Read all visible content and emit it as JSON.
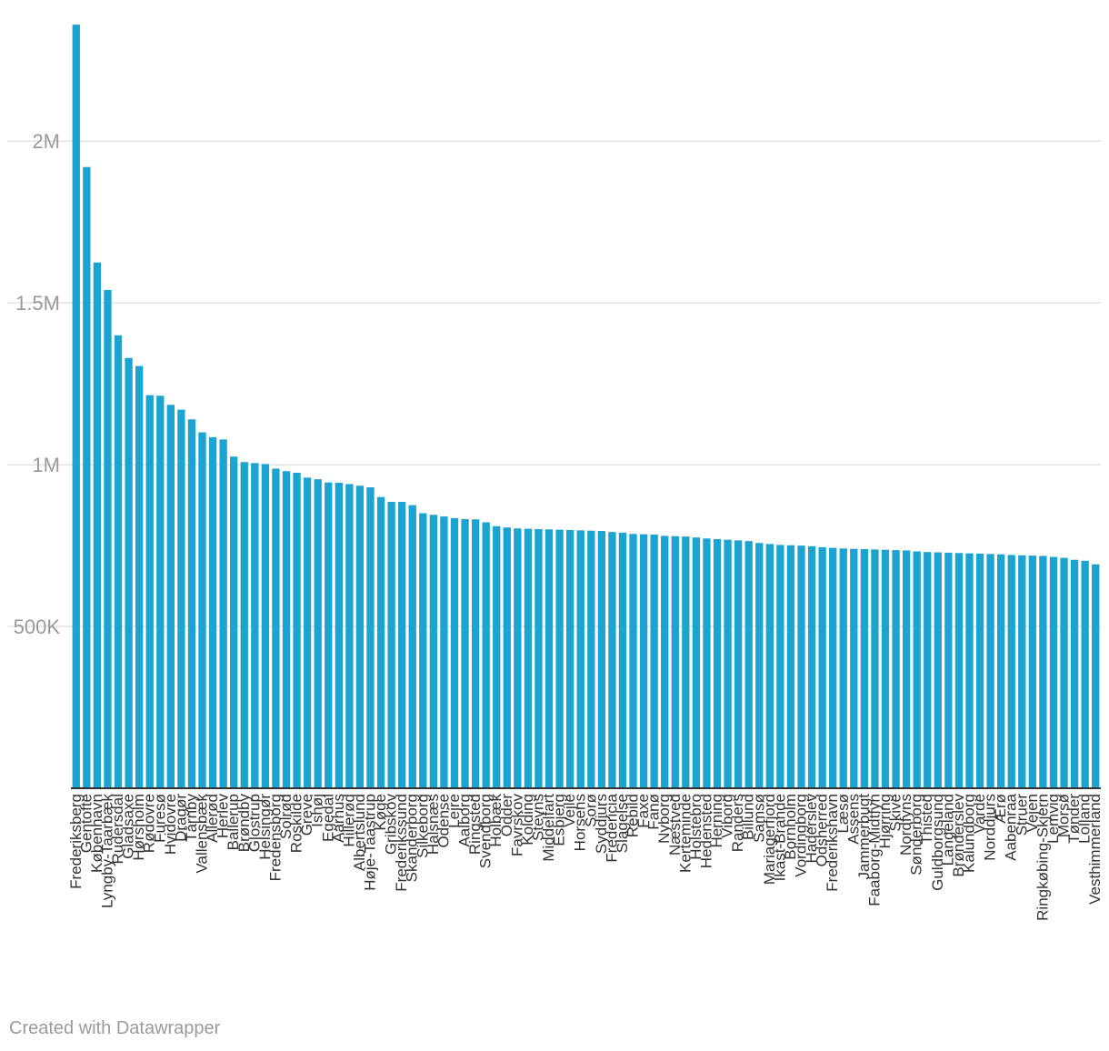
{
  "chart_data": {
    "type": "bar",
    "title": "",
    "xlabel": "",
    "ylabel": "",
    "ylim": [
      0,
      2380000
    ],
    "yticks": [
      {
        "value": 500000,
        "label": "500K"
      },
      {
        "value": 1000000,
        "label": "1M"
      },
      {
        "value": 1500000,
        "label": "1.5M"
      },
      {
        "value": 2000000,
        "label": "2M"
      }
    ],
    "grid": true,
    "bar_color": "#1ba3d1",
    "categories": [
      "Frederiksberg",
      "Gentofte",
      "København",
      "Lyngby-Taarbæk",
      "Rudersdal",
      "Gladsaxe",
      "Hørsholm",
      "Rødovre",
      "Furesø",
      "Hvidovre",
      "Dragør",
      "Tårnby",
      "Vallensbæk",
      "Allerød",
      "Herlev",
      "Ballerup",
      "Brøndby",
      "Glostrup",
      "Helsingør",
      "Fredensborg",
      "Solrød",
      "Roskilde",
      "Greve",
      "Ishøj",
      "Egedal",
      "Aarhus",
      "Hillerød",
      "Albertslund",
      "Høje-Taastrup",
      "Køge",
      "Gribskov",
      "Frederikssund",
      "Skanderborg",
      "Silkeborg",
      "Halsnæs",
      "Odense",
      "Lejre",
      "Aalborg",
      "Ringsted",
      "Svendborg",
      "Holbæk",
      "Odder",
      "Favrskov",
      "Kolding",
      "Stevns",
      "Middelfart",
      "Esbjerg",
      "Vejle",
      "Horsens",
      "Sorø",
      "Syddjurs",
      "Fredericia",
      "Slagelse",
      "Rebild",
      "Faxe",
      "Fanø",
      "Nyborg",
      "Næstved",
      "Kerteminde",
      "Holstebro",
      "Hedensted",
      "Herning",
      "Viborg",
      "Randers",
      "Billund",
      "Samsø",
      "Mariagerfjord",
      "Ikast-Brande",
      "Bornholm",
      "Vordingborg",
      "Haderslev",
      "Odsherred",
      "Frederikshavn",
      "Læsø",
      "Assens",
      "Jammerbugt",
      "Faaborg-Midtfyn",
      "Hjørring",
      "Skive",
      "Nordfyns",
      "Sønderborg",
      "Thisted",
      "Guldborgsund",
      "Langeland",
      "Brønderslev",
      "Kalundborg",
      "Varde",
      "Norddjurs",
      "Ærø",
      "Aabenraa",
      "Struer",
      "Vejen",
      "Ringkøbing-Skjern",
      "Lemvig",
      "Morsø",
      "Tønder",
      "Lolland",
      "Vesthimmerland"
    ],
    "values": [
      2360000,
      1920000,
      1625000,
      1540000,
      1400000,
      1330000,
      1305000,
      1215000,
      1213000,
      1185000,
      1170000,
      1140000,
      1100000,
      1085000,
      1078000,
      1025000,
      1008000,
      1005000,
      1002000,
      988000,
      980000,
      975000,
      960000,
      955000,
      945000,
      944000,
      940000,
      935000,
      930000,
      900000,
      885000,
      885000,
      875000,
      850000,
      845000,
      840000,
      835000,
      832000,
      831000,
      822000,
      810000,
      806000,
      803000,
      802000,
      801000,
      800000,
      799000,
      798000,
      797000,
      796000,
      795000,
      792000,
      790000,
      786000,
      785000,
      784000,
      780000,
      779000,
      778000,
      775000,
      772000,
      770000,
      768000,
      766000,
      764000,
      758000,
      755000,
      752000,
      751000,
      750000,
      748000,
      745000,
      743000,
      741000,
      740000,
      739000,
      738000,
      737000,
      736000,
      735000,
      732000,
      730000,
      729000,
      728000,
      727000,
      726000,
      725000,
      724000,
      723000,
      721000,
      720000,
      719000,
      718000,
      715000,
      712000,
      706000,
      703000,
      692000
    ]
  },
  "footer": {
    "credit": "Created with Datawrapper"
  }
}
